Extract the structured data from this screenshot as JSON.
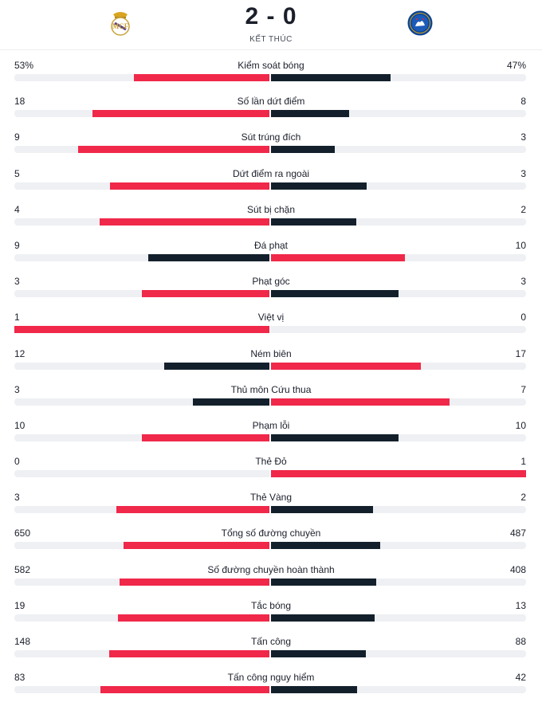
{
  "match": {
    "score": "2 - 0",
    "status": "KẾT THÚC",
    "home_badge": "real-madrid-crest-icon",
    "away_badge": "chelsea-crest-icon"
  },
  "colors": {
    "leader": "#f0284a",
    "trailer": "#13202c",
    "track": "#eef0f3"
  },
  "stats": [
    {
      "label": "Kiểm soát bóng",
      "home": "53%",
      "away": "47%",
      "home_value": 53,
      "away_value": 47
    },
    {
      "label": "Số lần dứt điểm",
      "home": "18",
      "away": "8",
      "home_value": 18,
      "away_value": 8
    },
    {
      "label": "Sút trúng đích",
      "home": "9",
      "away": "3",
      "home_value": 9,
      "away_value": 3
    },
    {
      "label": "Dứt điểm ra ngoài",
      "home": "5",
      "away": "3",
      "home_value": 5,
      "away_value": 3
    },
    {
      "label": "Sút bị chặn",
      "home": "4",
      "away": "2",
      "home_value": 4,
      "away_value": 2
    },
    {
      "label": "Đá phạt",
      "home": "9",
      "away": "10",
      "home_value": 9,
      "away_value": 10
    },
    {
      "label": "Phạt góc",
      "home": "3",
      "away": "3",
      "home_value": 3,
      "away_value": 3
    },
    {
      "label": "Việt vị",
      "home": "1",
      "away": "0",
      "home_value": 1,
      "away_value": 0
    },
    {
      "label": "Ném biên",
      "home": "12",
      "away": "17",
      "home_value": 12,
      "away_value": 17
    },
    {
      "label": "Thủ môn Cứu thua",
      "home": "3",
      "away": "7",
      "home_value": 3,
      "away_value": 7
    },
    {
      "label": "Phạm lỗi",
      "home": "10",
      "away": "10",
      "home_value": 10,
      "away_value": 10
    },
    {
      "label": "Thẻ Đỏ",
      "home": "0",
      "away": "1",
      "home_value": 0,
      "away_value": 1
    },
    {
      "label": "Thẻ Vàng",
      "home": "3",
      "away": "2",
      "home_value": 3,
      "away_value": 2
    },
    {
      "label": "Tổng số đường chuyền",
      "home": "650",
      "away": "487",
      "home_value": 650,
      "away_value": 487
    },
    {
      "label": "Số đường chuyền hoàn thành",
      "home": "582",
      "away": "408",
      "home_value": 582,
      "away_value": 408
    },
    {
      "label": "Tắc bóng",
      "home": "19",
      "away": "13",
      "home_value": 19,
      "away_value": 13
    },
    {
      "label": "Tấn công",
      "home": "148",
      "away": "88",
      "home_value": 148,
      "away_value": 88
    },
    {
      "label": "Tấn công nguy hiểm",
      "home": "83",
      "away": "42",
      "home_value": 83,
      "away_value": 42
    }
  ]
}
